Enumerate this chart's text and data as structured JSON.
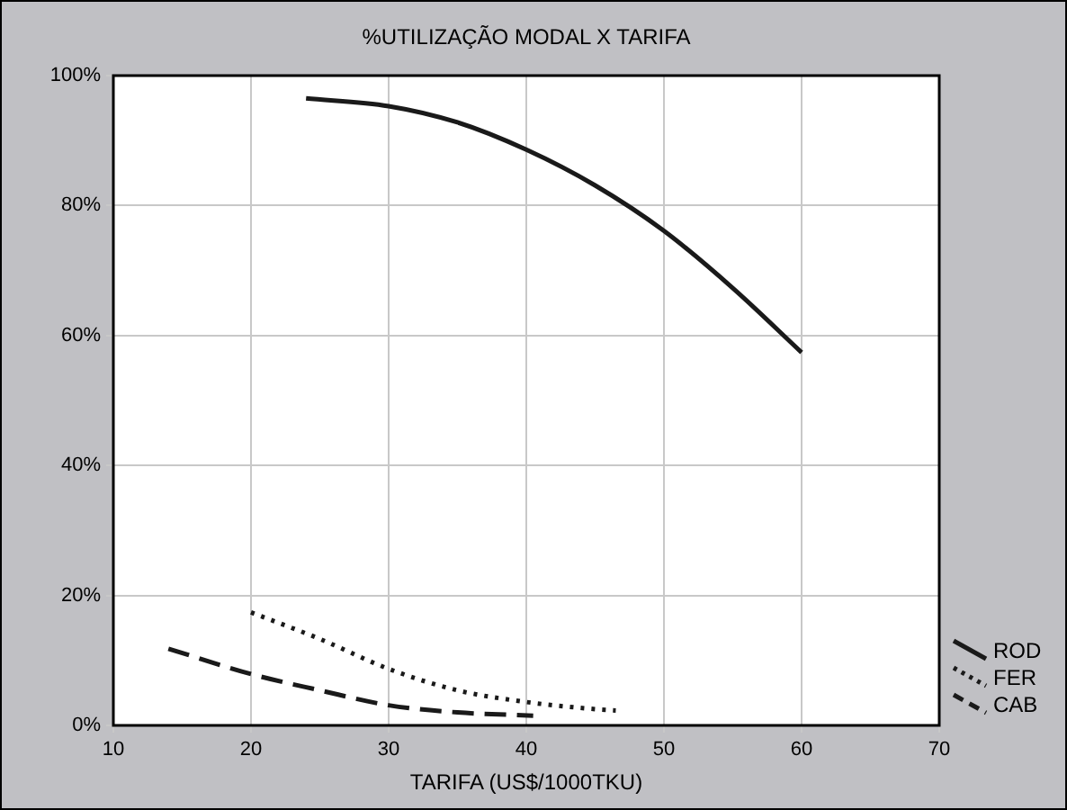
{
  "chart_data": {
    "type": "line",
    "title": "%UTILIZAÇÃO MODAL X TARIFA",
    "xlabel": "TARIFA (US$/1000TKU)",
    "xlim": [
      10,
      70
    ],
    "xticks": [
      10,
      20,
      30,
      40,
      50,
      60,
      70
    ],
    "ylim": [
      0,
      100
    ],
    "yticks": [
      {
        "value": 0,
        "label": "0%"
      },
      {
        "value": 20,
        "label": "20%"
      },
      {
        "value": 40,
        "label": "40%"
      },
      {
        "value": 60,
        "label": "60%"
      },
      {
        "value": 80,
        "label": "80%"
      },
      {
        "value": 100,
        "label": "100%"
      }
    ],
    "grid": true,
    "legend": "bottom right",
    "marker": "none",
    "series": [
      {
        "name": "ROD",
        "color": "#1a1a1a",
        "line_style": "solid",
        "x": [
          24,
          30,
          35,
          40,
          45,
          50,
          55,
          60
        ],
        "values": [
          96.5,
          95.3,
          92.8,
          88.6,
          83.1,
          76.1,
          67.3,
          57.4
        ]
      },
      {
        "name": "FER",
        "color": "#1a1a1a",
        "line_style": "dotted",
        "x": [
          20,
          25,
          30,
          35,
          40,
          45,
          46.5
        ],
        "values": [
          17.4,
          13.3,
          8.7,
          5.4,
          3.6,
          2.5,
          2.3
        ]
      },
      {
        "name": "CAB",
        "color": "#1a1a1a",
        "line_style": "dashed",
        "x": [
          14,
          20,
          25,
          30,
          35,
          40.5
        ],
        "values": [
          11.8,
          7.9,
          5.4,
          3.1,
          2.0,
          1.5
        ]
      }
    ]
  }
}
